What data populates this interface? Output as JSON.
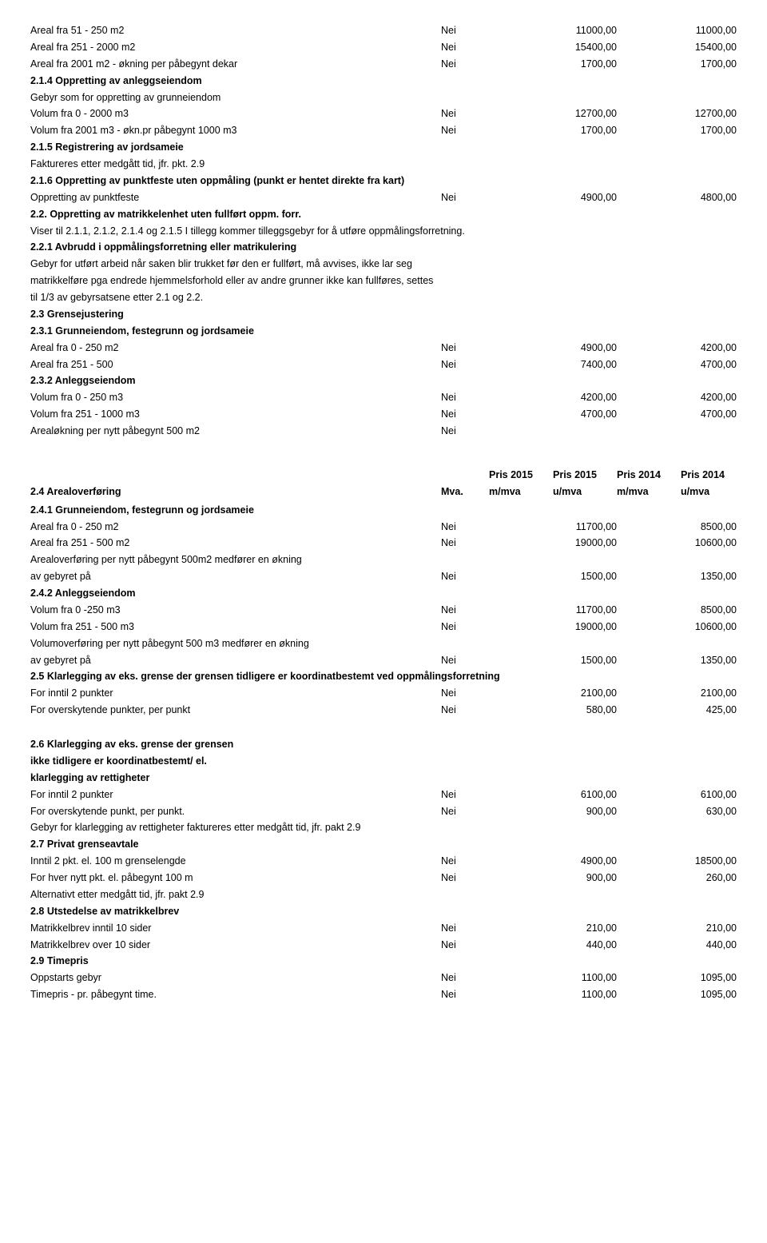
{
  "nei": "Nei",
  "s1": {
    "r1": {
      "label": "Areal fra 51 - 250 m2",
      "a": "11000,00",
      "b": "11000,00"
    },
    "r2": {
      "label": "Areal fra 251 - 2000 m2",
      "a": "15400,00",
      "b": "15400,00"
    },
    "r3": {
      "label": "Areal fra 2001 m2 - økning per påbegynt dekar",
      "a": "1700,00",
      "b": "1700,00"
    }
  },
  "s2_1_4": {
    "title": "2.1.4 Oppretting av anleggseiendom",
    "sub": "Gebyr som for oppretting av grunneiendom",
    "r1": {
      "label": "Volum fra 0 - 2000 m3",
      "a": "12700,00",
      "b": "12700,00"
    },
    "r2": {
      "label": "Volum fra 2001 m3 - økn.pr påbegynt 1000 m3",
      "a": "1700,00",
      "b": "1700,00"
    }
  },
  "s2_1_5": {
    "title": "2.1.5 Registrering av jordsameie",
    "line": "Faktureres etter medgått tid, jfr. pkt. 2.9"
  },
  "s2_1_6": {
    "title": "2.1.6 Oppretting av punktfeste uten oppmåling (punkt er hentet direkte fra kart)",
    "r1": {
      "label": "Oppretting av punktfeste",
      "a": "4900,00",
      "b": "4800,00"
    }
  },
  "s2_2": {
    "title": "2.2. Oppretting av matrikkelenhet uten fullført oppm. forr.",
    "line": "Viser til 2.1.1, 2.1.2, 2.1.4 og 2.1.5 I tillegg kommer tilleggsgebyr for å utføre oppmålingsforretning."
  },
  "s2_2_1": {
    "title": "2.2.1 Avbrudd i oppmålingsforretning eller matrikulering",
    "l1": "Gebyr for utført arbeid når saken blir trukket før den er fullført, må avvises, ikke lar seg",
    "l2": "matrikkelføre pga endrede hjemmelsforhold eller av andre grunner ikke kan fullføres, settes",
    "l3": "til 1/3 av gebyrsatsene etter 2.1 og 2.2."
  },
  "s2_3": {
    "title": "2.3 Grensejustering"
  },
  "s2_3_1": {
    "title": "2.3.1 Grunneiendom, festegrunn og jordsameie",
    "r1": {
      "label": "Areal fra 0 - 250 m2",
      "a": "4900,00",
      "b": "4200,00"
    },
    "r2": {
      "label": "Areal fra 251 - 500",
      "a": "7400,00",
      "b": "4700,00"
    }
  },
  "s2_3_2": {
    "title": "2.3.2 Anleggseiendom",
    "r1": {
      "label": "Volum fra 0 - 250 m3",
      "a": "4200,00",
      "b": "4200,00"
    },
    "r2": {
      "label": "Volum fra 251 - 1000 m3",
      "a": "4700,00",
      "b": "4700,00"
    },
    "r3": {
      "label": "Arealøkning per nytt påbegynt 500 m2"
    }
  },
  "hdr": {
    "label": "2.4 Arealoverføring",
    "mva": "Mva.",
    "a": "Pris 2015 m/mva",
    "b": "Pris 2015 u/mva",
    "c": "Pris 2014 m/mva",
    "d": "Pris 2014 u/mva",
    "top_a": "Pris 2015",
    "top_b": "Pris 2015",
    "top_c": "Pris 2014",
    "top_d": "Pris 2014",
    "bot_mva": "m/mva",
    "bot_u": "u/mva"
  },
  "s2_4_1": {
    "title": "2.4.1 Grunneiendom, festegrunn og jordsameie",
    "r1": {
      "label": "Areal fra 0 - 250 m2",
      "a": "11700,00",
      "b": "8500,00"
    },
    "r2": {
      "label": "Areal fra 251 - 500  m2",
      "a": "19000,00",
      "b": "10600,00"
    },
    "l1": "Arealoverføring per nytt påbegynt 500m2 medfører en økning",
    "r3": {
      "label": "av gebyret på",
      "a": "1500,00",
      "b": "1350,00"
    }
  },
  "s2_4_2": {
    "title": "2.4.2 Anleggseiendom",
    "r1": {
      "label": "Volum fra 0 -250 m3",
      "a": "11700,00",
      "b": "8500,00"
    },
    "r2": {
      "label": "Volum fra 251 - 500 m3",
      "a": "19000,00",
      "b": "10600,00"
    },
    "l1": "Volumoverføring per nytt påbegynt 500 m3 medfører en økning",
    "r3": {
      "label": "av gebyret på",
      "a": "1500,00",
      "b": "1350,00"
    }
  },
  "s2_5": {
    "title": "2.5 Klarlegging av eks. grense der grensen tidligere er koordinatbestemt ved oppmålingsforretning",
    "r1": {
      "label": "For inntil 2 punkter",
      "a": "2100,00",
      "b": "2100,00"
    },
    "r2": {
      "label": "For overskytende punkter, per punkt",
      "a": "580,00",
      "b": "425,00"
    }
  },
  "s2_6": {
    "t1": "2.6 Klarlegging av eks. grense der grensen",
    "t2": "ikke tidligere er koordinatbestemt/ el.",
    "t3": "klarlegging av rettigheter",
    "r1": {
      "label": "For inntil 2 punkter",
      "a": "6100,00",
      "b": "6100,00"
    },
    "r2": {
      "label": "For overskytende punkt, per punkt.",
      "a": "900,00",
      "b": "630,00"
    },
    "l1": "Gebyr for klarlegging av rettigheter faktureres  etter medgått tid, jfr. pakt 2.9"
  },
  "s2_7": {
    "title": "2.7 Privat grenseavtale",
    "r1": {
      "label": "Inntil 2 pkt. el. 100 m grenselengde",
      "a": "4900,00",
      "b": "18500,00"
    },
    "r2": {
      "label": "For hver nytt pkt. el. påbegynt 100 m",
      "a": "900,00",
      "b": "260,00"
    },
    "l1": "Alternativt etter medgått tid, jfr. pakt 2.9"
  },
  "s2_8": {
    "title": "2.8 Utstedelse av matrikkelbrev",
    "r1": {
      "label": "Matrikkelbrev inntil 10 sider",
      "a": "210,00",
      "b": "210,00"
    },
    "r2": {
      "label": "Matrikkelbrev over 10 sider",
      "a": "440,00",
      "b": "440,00"
    }
  },
  "s2_9": {
    "title": "2.9 Timepris",
    "r1": {
      "label": "Oppstarts gebyr",
      "a": "1100,00",
      "b": "1095,00"
    },
    "r2": {
      "label": "Timepris - pr. påbegynt time.",
      "a": "1100,00",
      "b": "1095,00"
    }
  }
}
